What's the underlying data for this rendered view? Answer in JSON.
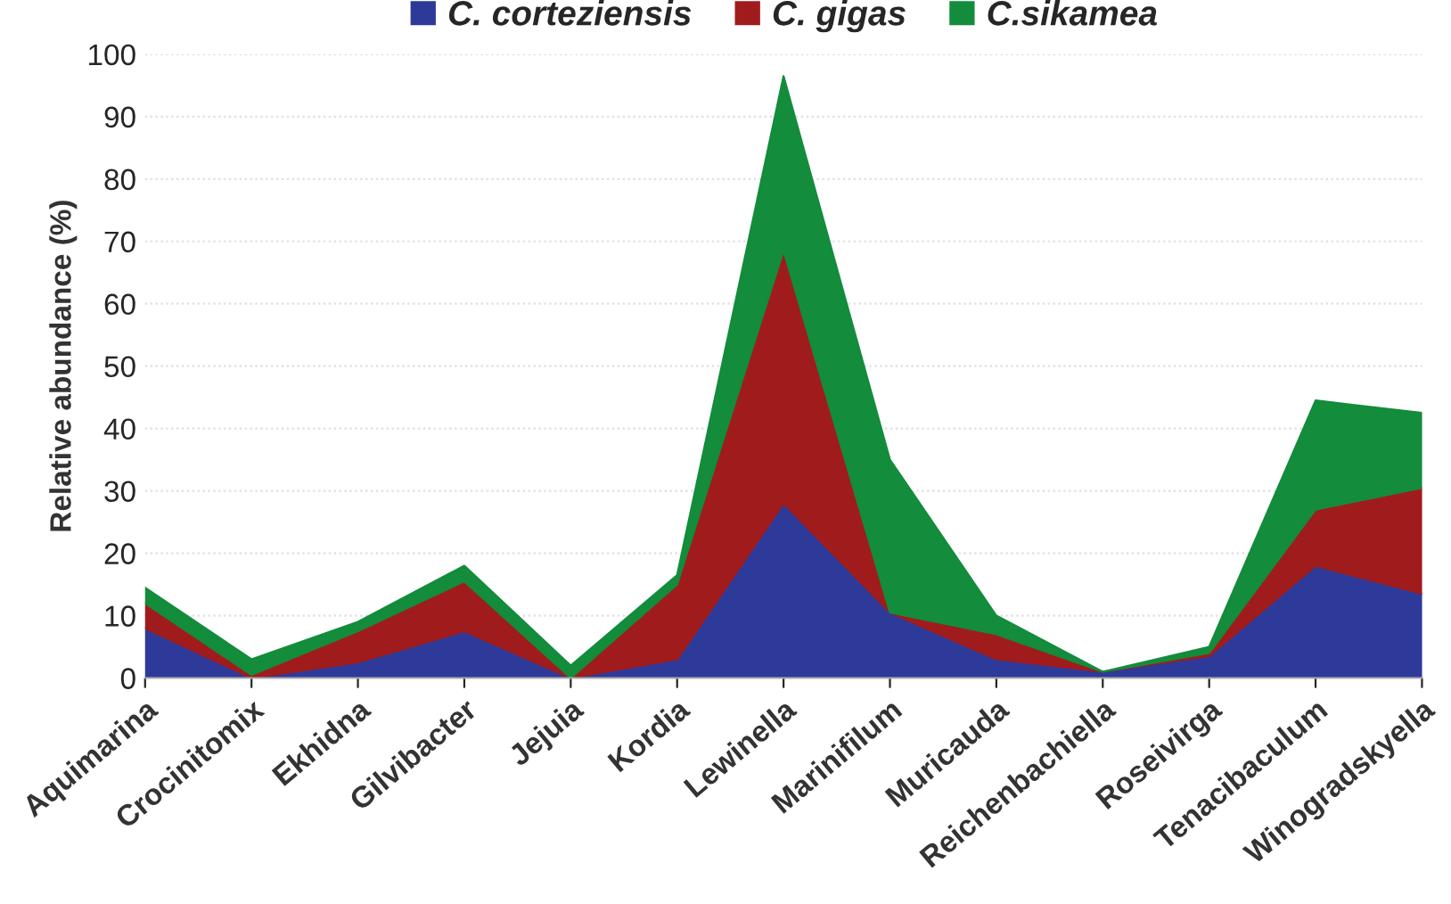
{
  "chart_data": {
    "type": "area",
    "stacked": true,
    "ylabel": "Relative abundance (%)",
    "categories": [
      "Aquimarina",
      "Crocinitomix",
      "Ekhidna",
      "Gilvibacter",
      "Jejuia",
      "Kordia",
      "Lewinella",
      "Marinifilum",
      "Muricauda",
      "Reichenbachiella",
      "Roseivirga",
      "Tenacibaculum",
      "Winogradskyella"
    ],
    "series": [
      {
        "name": "C. corteziensis",
        "color": "#2e3a9a",
        "values": [
          8,
          0,
          2.5,
          7.5,
          0,
          3,
          28,
          10.5,
          3,
          1,
          3.5,
          18,
          13.5
        ]
      },
      {
        "name": "C. gigas",
        "color": "#a01c1c",
        "values": [
          4,
          0.5,
          5,
          8,
          0,
          12,
          40.5,
          0,
          4,
          0,
          0.5,
          9,
          17
        ]
      },
      {
        "name": "C.sikamea",
        "color": "#138c3c",
        "values": [
          2.5,
          2.5,
          1.5,
          2.5,
          2,
          1.5,
          28,
          24.5,
          3,
          0,
          1,
          17.5,
          12
        ]
      }
    ],
    "ylim": [
      0,
      100
    ],
    "yticks": [
      0,
      10,
      20,
      30,
      40,
      50,
      60,
      70,
      80,
      90,
      100
    ],
    "grid": "y",
    "legend": "top"
  }
}
